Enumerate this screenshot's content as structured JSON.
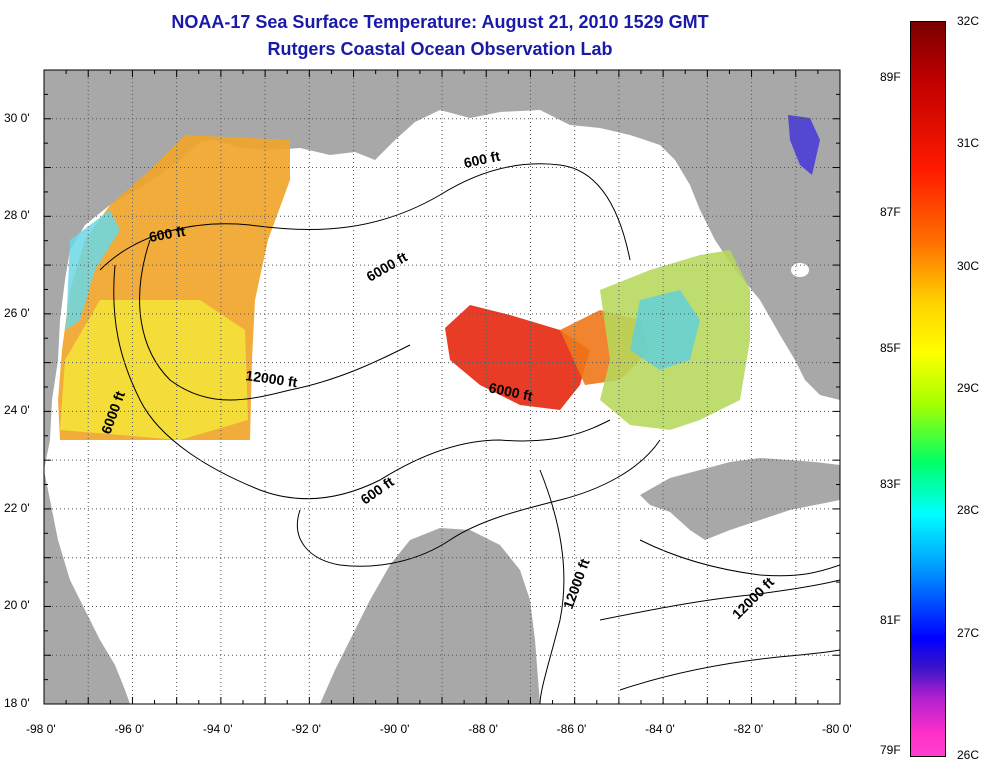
{
  "header": {
    "title": "NOAA-17 Sea Surface Temperature:  August 21, 2010 1529 GMT",
    "subtitle": "Rutgers Coastal Ocean Observation Lab"
  },
  "axes": {
    "x_labels": [
      "-98 0'",
      "-96 0'",
      "-94 0'",
      "-92 0'",
      "-90 0'",
      "-88 0'",
      "-86 0'",
      "-84 0'",
      "-82 0'",
      "-80 0'"
    ],
    "y_labels": [
      "30 0'",
      "28 0'",
      "26 0'",
      "24 0'",
      "22 0'",
      "20 0'",
      "18 0'"
    ],
    "x_range": [
      -98,
      -80
    ],
    "y_range": [
      18,
      31
    ]
  },
  "contours": {
    "labels": [
      "600 ft",
      "600 ft",
      "6000 ft",
      "12000 ft",
      "6000 ft",
      "6000 ft",
      "600 ft",
      "12000 ft",
      "12000 ft"
    ]
  },
  "colorbar": {
    "celsius": [
      "32C",
      "31C",
      "30C",
      "29C",
      "28C",
      "27C",
      "26C"
    ],
    "fahrenheit": [
      "89F",
      "87F",
      "85F",
      "83F",
      "81F",
      "79F"
    ]
  },
  "colors": {
    "land": "#a8a8a8",
    "title": "#1a1aa8",
    "ocean": "#ffffff"
  }
}
